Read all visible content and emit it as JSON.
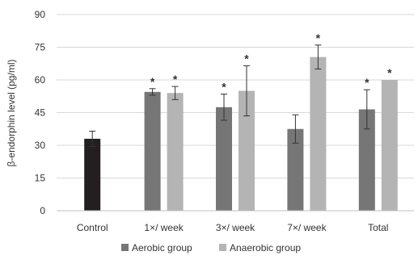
{
  "chart_data": {
    "type": "bar",
    "categories": [
      "Control",
      "1×/ week",
      "3×/ week",
      "7×/ week",
      "Total"
    ],
    "series": [
      {
        "name": "Aerobic group",
        "color": "#767676",
        "values": [
          null,
          54.5,
          47.5,
          37.5,
          46.5
        ],
        "errors": [
          null,
          1.5,
          6,
          6.5,
          9
        ],
        "significant": [
          false,
          true,
          true,
          false,
          true
        ]
      },
      {
        "name": "Anaerobic group",
        "color": "#b4b4b4",
        "values": [
          null,
          54,
          55,
          70.5,
          60
        ],
        "errors": [
          null,
          3,
          11.5,
          5.5,
          null
        ],
        "significant": [
          false,
          true,
          true,
          true,
          true
        ]
      }
    ],
    "control": {
      "category": "Control",
      "value": 33,
      "error": 3.5,
      "color": "#231f20"
    },
    "significance_marker": "*",
    "ylabel": "β-endorphin  level (pg/ml)",
    "xlabel": "",
    "title": "",
    "ylim": [
      0,
      90
    ],
    "yticks": [
      0,
      15,
      30,
      45,
      60,
      75,
      90
    ],
    "grid": "horizontal",
    "legend_position": "bottom"
  }
}
